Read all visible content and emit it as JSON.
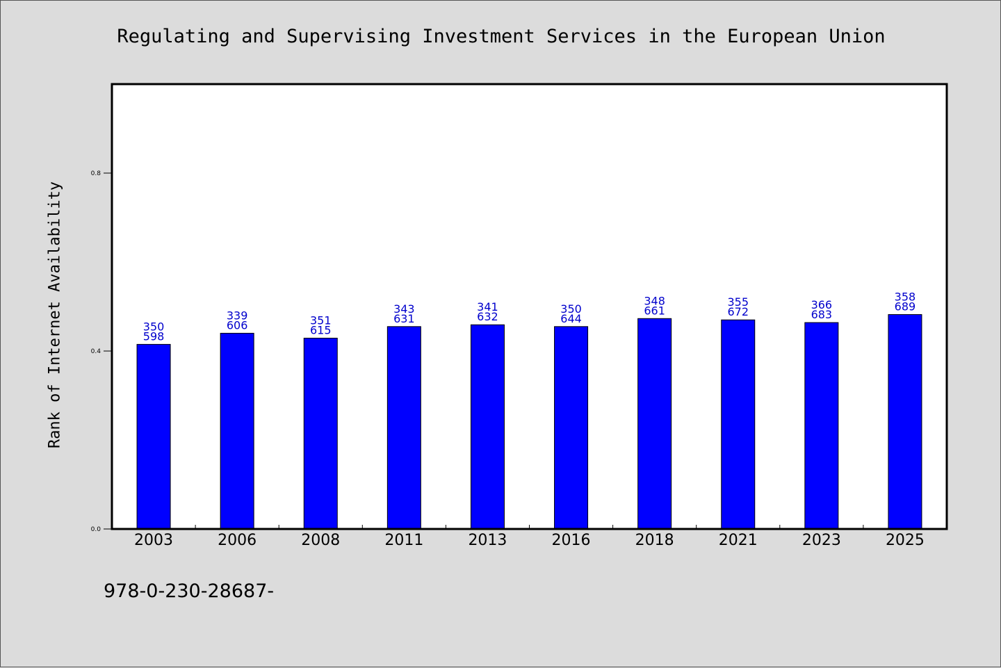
{
  "chart_data": {
    "type": "bar",
    "title": "Regulating and Supervising Investment Services in the European Union",
    "xlabel": "",
    "ylabel": "Rank of Internet Availability",
    "categories": [
      "2003",
      "2006",
      "2008",
      "2011",
      "2013",
      "2016",
      "2018",
      "2021",
      "2023",
      "2025"
    ],
    "values": [
      0.415,
      0.44,
      0.429,
      0.455,
      0.459,
      0.455,
      0.473,
      0.47,
      0.464,
      0.482
    ],
    "bar_labels": [
      [
        "350",
        "598"
      ],
      [
        "339",
        "606"
      ],
      [
        "351",
        "615"
      ],
      [
        "343",
        "631"
      ],
      [
        "341",
        "632"
      ],
      [
        "350",
        "644"
      ],
      [
        "348",
        "661"
      ],
      [
        "355",
        "672"
      ],
      [
        "366",
        "683"
      ],
      [
        "358",
        "689"
      ]
    ],
    "yticks": [
      "0.0",
      "0.4",
      "0.8"
    ],
    "ylim": [
      0,
      1.0
    ],
    "grid": false,
    "legend": "none",
    "bar_color": "#0000ff",
    "label_color": "#0000cc"
  },
  "footer": {
    "code": "978-0-230-28687-"
  }
}
